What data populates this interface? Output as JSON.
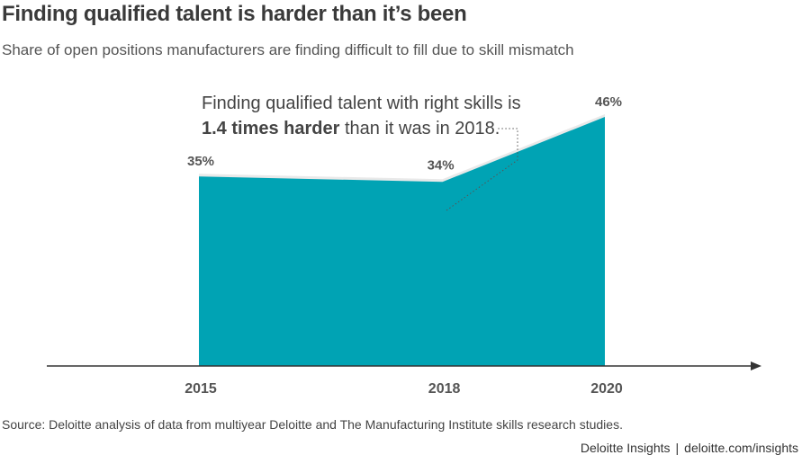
{
  "title": "Finding qualified talent is harder than it’s been",
  "subtitle": "Share of open positions manufacturers are finding difficult to fill due to skill mismatch",
  "annotation": {
    "line1": "Finding qualified talent with right skills is",
    "bold": "1.4 times harder",
    "rest": " than it was in 2018."
  },
  "source": "Source: Deloitte analysis of data from multiyear Deloitte and The Manufacturing Institute skills research studies.",
  "footer": {
    "brand": "Deloitte Insights",
    "separator": "|",
    "url": "deloitte.com/insights"
  },
  "colors": {
    "area": "#00a3b4",
    "axis": "#333333",
    "label": "#555555"
  },
  "chart_data": {
    "type": "area",
    "x": [
      "2015",
      "2018",
      "2020"
    ],
    "values": [
      35,
      34,
      46
    ],
    "data_labels": [
      "35%",
      "34%",
      "46%"
    ],
    "ylim": [
      0,
      50
    ]
  }
}
